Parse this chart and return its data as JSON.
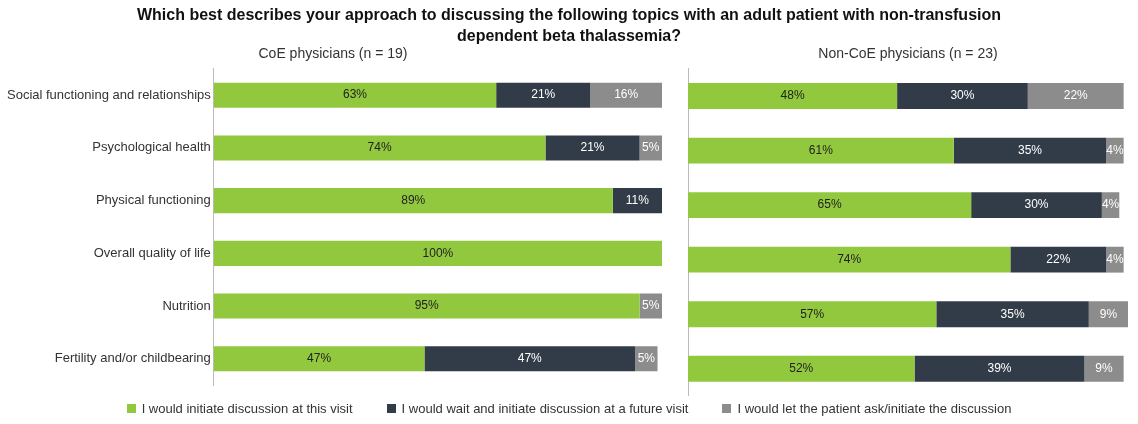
{
  "chart_data": [
    {
      "type": "bar",
      "orientation": "horizontal",
      "stacked": true,
      "title": "Which best describes your approach to discussing the following topics with an adult patient with non-transfusion dependent beta thalassemia?",
      "subtitle": "CoE physicians (n = 19)",
      "categories": [
        "Social functioning and relationships",
        "Psychological health",
        "Physical functioning",
        "Overall quality of life",
        "Nutrition",
        "Fertility and/or childbearing"
      ],
      "tick_labels": "y",
      "legend": "bottom",
      "series": [
        {
          "name": "I would initiate discussion at this visit",
          "color": "#92c83e",
          "values": [
            63,
            74,
            89,
            100,
            95,
            47
          ],
          "value_labels": [
            "63%",
            "74%",
            "89%",
            "100%",
            "95%",
            "47%"
          ]
        },
        {
          "name": "I would wait and initiate discussion at a future visit",
          "color": "#323c49",
          "values": [
            21,
            21,
            11,
            null,
            null,
            47
          ],
          "value_labels": [
            "21%",
            "21%",
            "11%",
            null,
            null,
            "47%"
          ]
        },
        {
          "name": "I would let the patient ask/initiate the discussion",
          "color": "#8c8c8c",
          "values": [
            16,
            5,
            null,
            null,
            5,
            5
          ],
          "value_labels": [
            "16%",
            "5%",
            null,
            null,
            "5%",
            "5%"
          ]
        }
      ]
    },
    {
      "type": "bar",
      "orientation": "horizontal",
      "stacked": true,
      "subtitle": "Non-CoE physicians (n = 23)",
      "categories": [
        null,
        null,
        null,
        null,
        null,
        null
      ],
      "tick_labels": false,
      "series": [
        {
          "color": "#92c83e",
          "values": [
            48,
            61,
            65,
            74,
            57,
            52
          ],
          "value_labels": [
            "48%",
            "61%",
            "65%",
            "74%",
            "57%",
            "52%"
          ]
        },
        {
          "color": "#323c49",
          "values": [
            30,
            35,
            30,
            22,
            35,
            39
          ],
          "value_labels": [
            "30%",
            "35%",
            "30%",
            "22%",
            "35%",
            "39%"
          ]
        },
        {
          "color": "#8c8c8c",
          "values": [
            22,
            4,
            4,
            4,
            9,
            9
          ],
          "value_labels": [
            "22%",
            "4%",
            "4%",
            "4%",
            "9%",
            "9%"
          ]
        }
      ]
    }
  ]
}
